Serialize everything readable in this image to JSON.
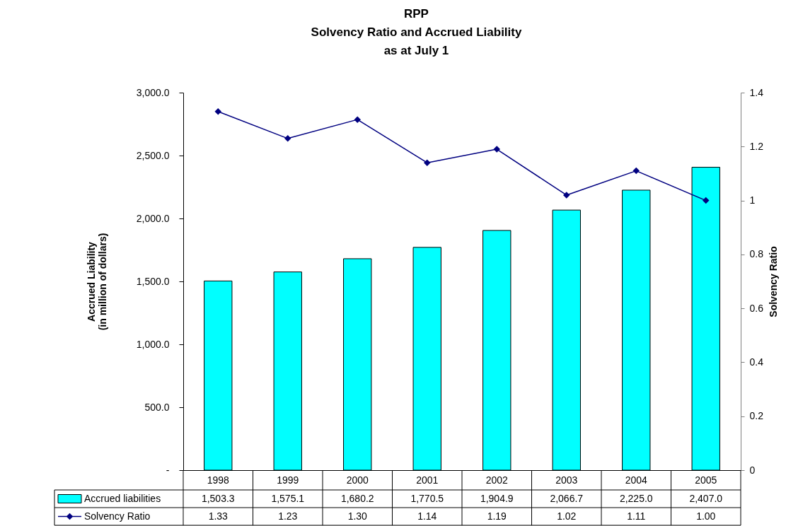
{
  "chart_data": {
    "type": "bar",
    "title": "RPP\nSolvency Ratio and Accrued Liability\nas at July 1",
    "ylabel": "Accrued Liability\n(in million of dollars)",
    "y2label": "Solvency Ratio",
    "categories": [
      "1998",
      "1999",
      "2000",
      "2001",
      "2002",
      "2003",
      "2004",
      "2005"
    ],
    "series": [
      {
        "name": "Accrued liabilities",
        "color": "#00ffff",
        "values": [
          1503.3,
          1575.1,
          1680.2,
          1770.5,
          1904.9,
          2066.7,
          2225.0,
          2407.0
        ],
        "value_labels": [
          "1,503.3",
          "1,575.1",
          "1,680.2",
          "1,770.5",
          "1,904.9",
          "2,066.7",
          "2,225.0",
          "2,407.0"
        ]
      },
      {
        "name": "Solvency Ratio",
        "type": "line",
        "axis": "y2",
        "color": "#000080",
        "marker": "diamond",
        "line_style": "solid",
        "values": [
          1.33,
          1.23,
          1.3,
          1.14,
          1.19,
          1.02,
          1.11,
          1.0
        ],
        "value_labels": [
          "1.33",
          "1.23",
          "1.30",
          "1.14",
          "1.19",
          "1.02",
          "1.11",
          "1.00"
        ]
      }
    ],
    "ylim": [
      0,
      3000
    ],
    "yticks": [
      {
        "value": 0,
        "label": "-"
      },
      {
        "value": 500,
        "label": "500.0"
      },
      {
        "value": 1000,
        "label": "1,000.0"
      },
      {
        "value": 1500,
        "label": "1,500.0"
      },
      {
        "value": 2000,
        "label": "2,000.0"
      },
      {
        "value": 2500,
        "label": "2,500.0"
      },
      {
        "value": 3000,
        "label": "3,000.0"
      }
    ],
    "y2lim": [
      0,
      1.4
    ],
    "y2ticks": [
      0,
      0.2,
      0.4,
      0.6,
      0.8,
      1,
      1.2,
      1.4
    ],
    "legend": "bottom left"
  }
}
